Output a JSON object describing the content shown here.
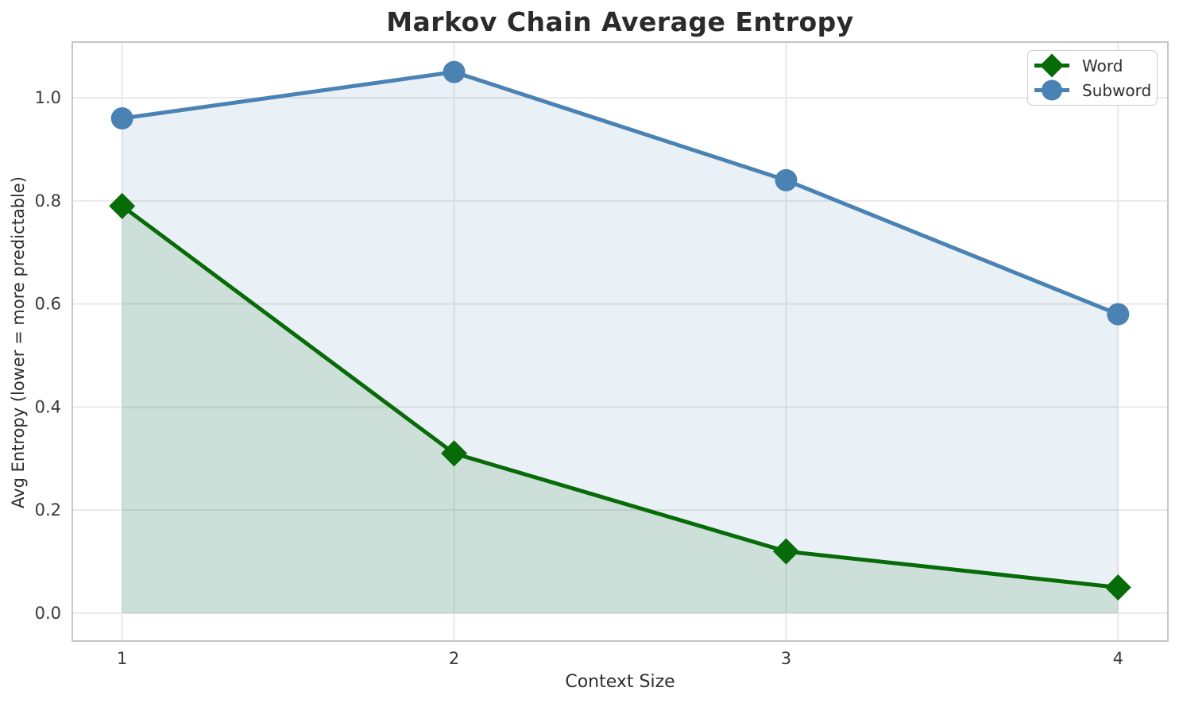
{
  "figure": {
    "title": "Markov Chain Average Entropy",
    "xlabel": "Context Size",
    "ylabel": "Avg Entropy (lower = more predictable)"
  },
  "chart_data": {
    "type": "line",
    "title": "Markov Chain Average Entropy",
    "xlabel": "Context Size",
    "ylabel": "Avg Entropy (lower = more predictable)",
    "x": [
      1,
      2,
      3,
      4
    ],
    "series": [
      {
        "name": "Word",
        "values": [
          0.79,
          0.31,
          0.12,
          0.05
        ],
        "color": "#076b07",
        "marker": "diamond",
        "area_fill": true,
        "fill_alpha": 0.12
      },
      {
        "name": "Subword",
        "values": [
          0.96,
          1.05,
          0.84,
          0.58
        ],
        "color": "#4a82b4",
        "marker": "circle",
        "area_fill": true,
        "fill_alpha": 0.12
      }
    ],
    "xticks": [
      "1",
      "2",
      "3",
      "4"
    ],
    "xtick_values": [
      1,
      2,
      3,
      4
    ],
    "yticks": [
      "0.0",
      "0.2",
      "0.4",
      "0.6",
      "0.8",
      "1.0"
    ],
    "ytick_values": [
      0.0,
      0.2,
      0.4,
      0.6,
      0.8,
      1.0
    ],
    "xlim": [
      0.85,
      4.15
    ],
    "ylim": [
      -0.054,
      1.108
    ],
    "grid": true,
    "legend_position": "upper right",
    "colors": {
      "grid": "#e9e9e9",
      "spine": "#c6c6c6",
      "tick_text": "#3a3a3a",
      "background": "#ffffff"
    }
  }
}
